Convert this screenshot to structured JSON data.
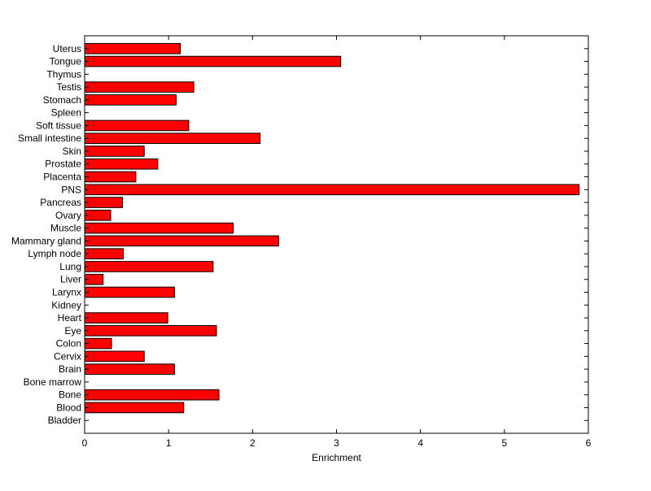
{
  "chart_data": {
    "type": "bar",
    "orientation": "horizontal",
    "title": "",
    "xlabel": "Enrichment",
    "ylabel": "",
    "xlim": [
      0,
      6
    ],
    "xticks": [
      0,
      1,
      2,
      3,
      4,
      5,
      6
    ],
    "grid": false,
    "legend": "none",
    "bar_color": "#ff0000",
    "bar_edge_color": "#000000",
    "categories": [
      "Bladder",
      "Blood",
      "Bone",
      "Bone marrow",
      "Brain",
      "Cervix",
      "Colon",
      "Eye",
      "Heart",
      "Kidney",
      "Larynx",
      "Liver",
      "Lung",
      "Lymph node",
      "Mammary gland",
      "Muscle",
      "Ovary",
      "Pancreas",
      "PNS",
      "Placenta",
      "Prostate",
      "Skin",
      "Small intestine",
      "Soft tissue",
      "Spleen",
      "Stomach",
      "Testis",
      "Thymus",
      "Tongue",
      "Uterus"
    ],
    "values": [
      0,
      1.18,
      1.6,
      0,
      1.07,
      0.71,
      0.32,
      1.57,
      0.99,
      0,
      1.07,
      0.22,
      1.53,
      0.46,
      2.31,
      1.77,
      0.31,
      0.45,
      5.89,
      0.61,
      0.87,
      0.71,
      2.09,
      1.24,
      0,
      1.09,
      1.3,
      0,
      3.05,
      1.14
    ]
  }
}
